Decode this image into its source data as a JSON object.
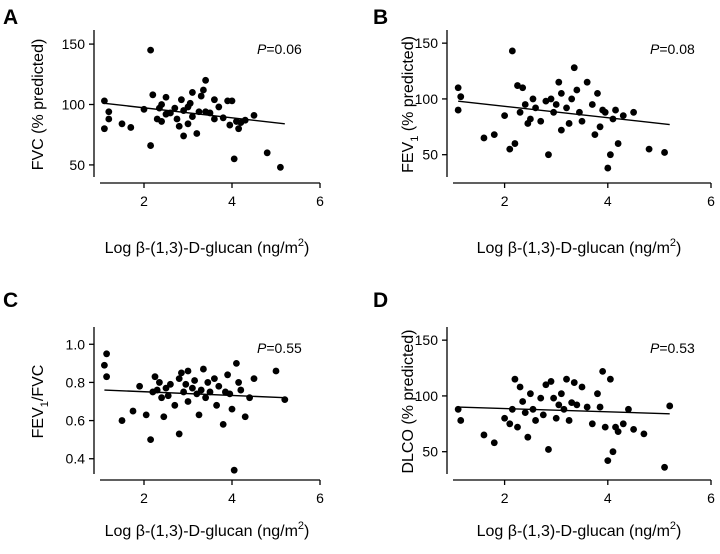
{
  "figure": {
    "panel_labels": [
      "A",
      "B",
      "C",
      "D"
    ],
    "x_label_prefix": "Log β-(1,3)-D-glucan (ng/m",
    "x_label_sup": "2",
    "x_label_suffix": ")"
  },
  "chart_data": [
    {
      "type": "scatter",
      "panel": "A",
      "ylabel_parts": [
        {
          "t": "FVC (% predicted)"
        }
      ],
      "p_label": "P",
      "p_value": "=0.06",
      "xlim": [
        1,
        6
      ],
      "ylim": [
        40,
        160
      ],
      "xticks": [
        2,
        4,
        6
      ],
      "yticks": [
        50,
        100,
        150
      ],
      "ytick_labels": [
        "50",
        "100",
        "150"
      ],
      "regression": {
        "x1": 1.1,
        "y1": 101,
        "x2": 5.2,
        "y2": 84
      },
      "points": [
        [
          1.1,
          103
        ],
        [
          1.1,
          80
        ],
        [
          1.2,
          88
        ],
        [
          1.2,
          94
        ],
        [
          1.5,
          84
        ],
        [
          1.7,
          81
        ],
        [
          2.0,
          96
        ],
        [
          2.15,
          66
        ],
        [
          2.15,
          145
        ],
        [
          2.2,
          108
        ],
        [
          2.3,
          88
        ],
        [
          2.35,
          97
        ],
        [
          2.4,
          86
        ],
        [
          2.4,
          100
        ],
        [
          2.5,
          106
        ],
        [
          2.5,
          92
        ],
        [
          2.6,
          93
        ],
        [
          2.7,
          97
        ],
        [
          2.75,
          88
        ],
        [
          2.8,
          82
        ],
        [
          2.85,
          104
        ],
        [
          2.9,
          74
        ],
        [
          2.9,
          95
        ],
        [
          3.0,
          98
        ],
        [
          3.0,
          84
        ],
        [
          3.05,
          101
        ],
        [
          3.1,
          110
        ],
        [
          3.1,
          90
        ],
        [
          3.2,
          76
        ],
        [
          3.25,
          94
        ],
        [
          3.3,
          107
        ],
        [
          3.35,
          112
        ],
        [
          3.4,
          120
        ],
        [
          3.4,
          94
        ],
        [
          3.5,
          93
        ],
        [
          3.6,
          104
        ],
        [
          3.6,
          88
        ],
        [
          3.7,
          98
        ],
        [
          3.8,
          89
        ],
        [
          3.9,
          103
        ],
        [
          3.95,
          83
        ],
        [
          4.0,
          103
        ],
        [
          4.05,
          55
        ],
        [
          4.1,
          86
        ],
        [
          4.15,
          80
        ],
        [
          4.2,
          85
        ],
        [
          4.3,
          87
        ],
        [
          4.5,
          91
        ],
        [
          4.8,
          60
        ],
        [
          5.1,
          48
        ]
      ]
    },
    {
      "type": "scatter",
      "panel": "B",
      "ylabel_parts": [
        {
          "t": "FEV"
        },
        {
          "t": "1",
          "sub": true
        },
        {
          "t": " (% predicted)"
        }
      ],
      "p_label": "P",
      "p_value": "=0.08",
      "xlim": [
        1,
        6
      ],
      "ylim": [
        30,
        160
      ],
      "xticks": [
        2,
        4,
        6
      ],
      "yticks": [
        50,
        100,
        150
      ],
      "ytick_labels": [
        "50",
        "100",
        "150"
      ],
      "regression": {
        "x1": 1.1,
        "y1": 98,
        "x2": 5.2,
        "y2": 77
      },
      "points": [
        [
          1.1,
          110
        ],
        [
          1.1,
          90
        ],
        [
          1.15,
          102
        ],
        [
          1.6,
          65
        ],
        [
          1.8,
          68
        ],
        [
          2.0,
          85
        ],
        [
          2.1,
          55
        ],
        [
          2.15,
          143
        ],
        [
          2.2,
          60
        ],
        [
          2.25,
          112
        ],
        [
          2.3,
          88
        ],
        [
          2.35,
          110
        ],
        [
          2.4,
          95
        ],
        [
          2.45,
          78
        ],
        [
          2.5,
          82
        ],
        [
          2.55,
          100
        ],
        [
          2.6,
          92
        ],
        [
          2.7,
          80
        ],
        [
          2.8,
          98
        ],
        [
          2.85,
          50
        ],
        [
          2.9,
          100
        ],
        [
          2.95,
          88
        ],
        [
          3.0,
          95
        ],
        [
          3.05,
          115
        ],
        [
          3.1,
          72
        ],
        [
          3.1,
          105
        ],
        [
          3.2,
          92
        ],
        [
          3.25,
          78
        ],
        [
          3.3,
          100
        ],
        [
          3.35,
          128
        ],
        [
          3.4,
          108
        ],
        [
          3.45,
          88
        ],
        [
          3.5,
          80
        ],
        [
          3.6,
          115
        ],
        [
          3.7,
          95
        ],
        [
          3.75,
          68
        ],
        [
          3.8,
          105
        ],
        [
          3.85,
          75
        ],
        [
          3.9,
          90
        ],
        [
          3.95,
          88
        ],
        [
          4.0,
          38
        ],
        [
          4.05,
          50
        ],
        [
          4.1,
          82
        ],
        [
          4.15,
          90
        ],
        [
          4.2,
          60
        ],
        [
          4.3,
          85
        ],
        [
          4.5,
          88
        ],
        [
          4.8,
          55
        ],
        [
          5.1,
          52
        ]
      ]
    },
    {
      "type": "scatter",
      "panel": "C",
      "ylabel_parts": [
        {
          "t": "FEV"
        },
        {
          "t": "1",
          "sub": true
        },
        {
          "t": "/FVC"
        }
      ],
      "p_label": "P",
      "p_value": "=0.55",
      "xlim": [
        1,
        6
      ],
      "ylim": [
        0.32,
        1.08
      ],
      "xticks": [
        2,
        4,
        6
      ],
      "yticks": [
        0.4,
        0.6,
        0.8,
        1.0
      ],
      "ytick_labels": [
        "0.4",
        "0.6",
        "0.8",
        "1.0"
      ],
      "regression": {
        "x1": 1.1,
        "y1": 0.76,
        "x2": 5.2,
        "y2": 0.72
      },
      "points": [
        [
          1.1,
          0.89
        ],
        [
          1.15,
          0.95
        ],
        [
          1.15,
          0.83
        ],
        [
          1.5,
          0.6
        ],
        [
          1.75,
          0.65
        ],
        [
          1.9,
          0.78
        ],
        [
          2.05,
          0.63
        ],
        [
          2.15,
          0.5
        ],
        [
          2.2,
          0.75
        ],
        [
          2.25,
          0.83
        ],
        [
          2.3,
          0.76
        ],
        [
          2.35,
          0.8
        ],
        [
          2.4,
          0.72
        ],
        [
          2.45,
          0.62
        ],
        [
          2.5,
          0.77
        ],
        [
          2.55,
          0.73
        ],
        [
          2.6,
          0.79
        ],
        [
          2.7,
          0.68
        ],
        [
          2.8,
          0.82
        ],
        [
          2.8,
          0.53
        ],
        [
          2.85,
          0.85
        ],
        [
          2.9,
          0.75
        ],
        [
          2.95,
          0.79
        ],
        [
          3.0,
          0.7
        ],
        [
          3.0,
          0.86
        ],
        [
          3.1,
          0.77
        ],
        [
          3.15,
          0.81
        ],
        [
          3.2,
          0.74
        ],
        [
          3.25,
          0.63
        ],
        [
          3.3,
          0.76
        ],
        [
          3.35,
          0.87
        ],
        [
          3.4,
          0.72
        ],
        [
          3.45,
          0.8
        ],
        [
          3.5,
          0.75
        ],
        [
          3.6,
          0.82
        ],
        [
          3.65,
          0.68
        ],
        [
          3.7,
          0.78
        ],
        [
          3.8,
          0.58
        ],
        [
          3.85,
          0.75
        ],
        [
          3.9,
          0.84
        ],
        [
          3.95,
          0.74
        ],
        [
          4.0,
          0.66
        ],
        [
          4.05,
          0.34
        ],
        [
          4.1,
          0.9
        ],
        [
          4.15,
          0.8
        ],
        [
          4.2,
          0.76
        ],
        [
          4.3,
          0.62
        ],
        [
          4.4,
          0.72
        ],
        [
          4.5,
          0.82
        ],
        [
          5.0,
          0.86
        ],
        [
          5.2,
          0.71
        ]
      ]
    },
    {
      "type": "scatter",
      "panel": "D",
      "ylabel_parts": [
        {
          "t": "DLCO (% predicted)"
        }
      ],
      "p_label": "P",
      "p_value": "=0.53",
      "xlim": [
        1,
        6
      ],
      "ylim": [
        30,
        160
      ],
      "xticks": [
        2,
        4,
        6
      ],
      "yticks": [
        50,
        100,
        150
      ],
      "ytick_labels": [
        "50",
        "100",
        "150"
      ],
      "regression": {
        "x1": 1.1,
        "y1": 90,
        "x2": 5.2,
        "y2": 84
      },
      "points": [
        [
          1.1,
          88
        ],
        [
          1.15,
          78
        ],
        [
          1.6,
          65
        ],
        [
          1.8,
          58
        ],
        [
          2.0,
          80
        ],
        [
          2.1,
          75
        ],
        [
          2.15,
          88
        ],
        [
          2.2,
          115
        ],
        [
          2.25,
          72
        ],
        [
          2.3,
          108
        ],
        [
          2.35,
          95
        ],
        [
          2.4,
          85
        ],
        [
          2.45,
          63
        ],
        [
          2.5,
          102
        ],
        [
          2.55,
          88
        ],
        [
          2.6,
          78
        ],
        [
          2.7,
          98
        ],
        [
          2.75,
          83
        ],
        [
          2.8,
          110
        ],
        [
          2.85,
          52
        ],
        [
          2.9,
          113
        ],
        [
          2.95,
          98
        ],
        [
          3.0,
          80
        ],
        [
          3.05,
          92
        ],
        [
          3.1,
          102
        ],
        [
          3.15,
          88
        ],
        [
          3.2,
          115
        ],
        [
          3.25,
          78
        ],
        [
          3.3,
          94
        ],
        [
          3.35,
          112
        ],
        [
          3.4,
          92
        ],
        [
          3.5,
          108
        ],
        [
          3.6,
          90
        ],
        [
          3.7,
          75
        ],
        [
          3.8,
          102
        ],
        [
          3.85,
          90
        ],
        [
          3.9,
          122
        ],
        [
          3.95,
          72
        ],
        [
          4.0,
          42
        ],
        [
          4.05,
          115
        ],
        [
          4.1,
          50
        ],
        [
          4.15,
          72
        ],
        [
          4.2,
          68
        ],
        [
          4.3,
          75
        ],
        [
          4.4,
          88
        ],
        [
          4.5,
          70
        ],
        [
          4.7,
          66
        ],
        [
          5.1,
          36
        ],
        [
          5.2,
          91
        ]
      ]
    }
  ]
}
